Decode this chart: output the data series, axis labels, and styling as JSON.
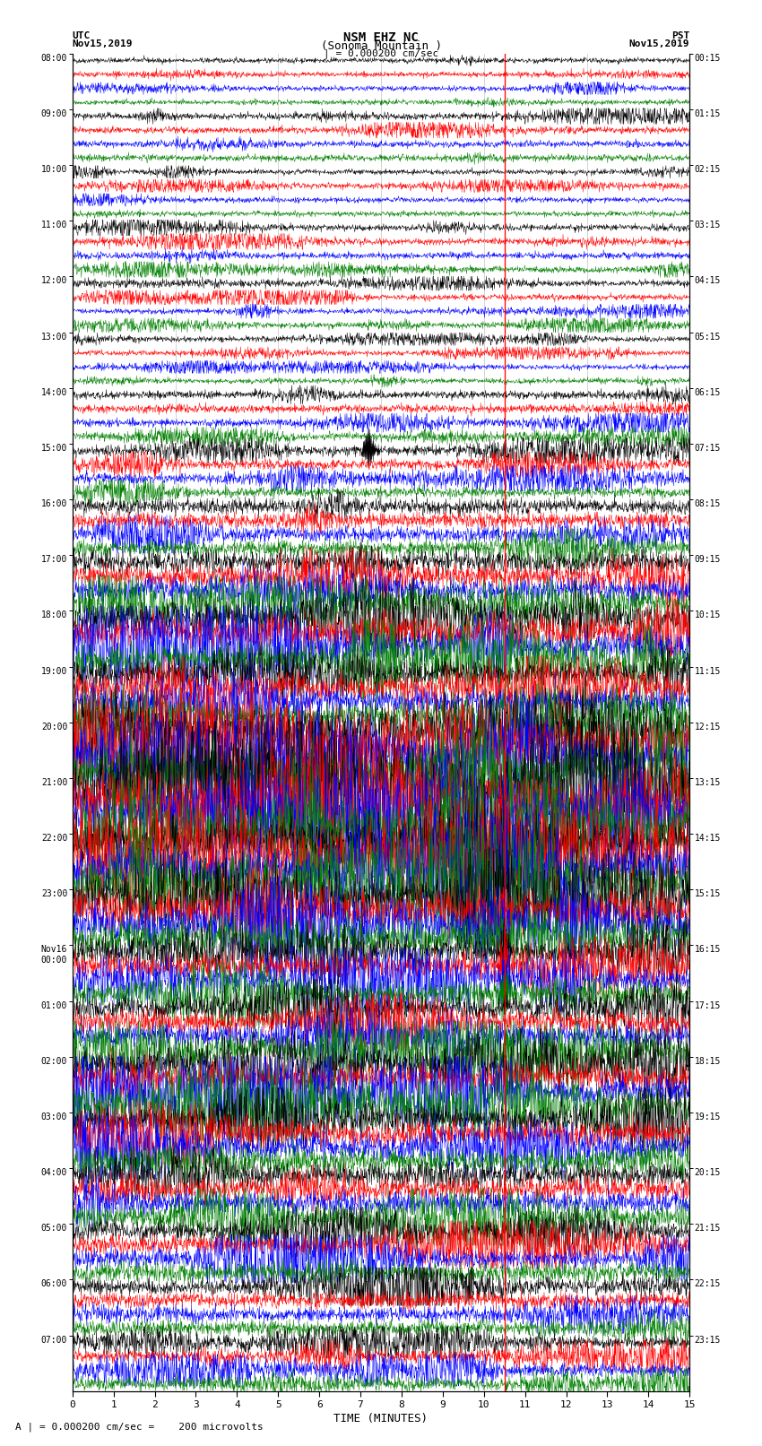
{
  "title_line1": "NSM EHZ NC",
  "title_line2": "(Sonoma Mountain )",
  "scale_text": "| = 0.000200 cm/sec",
  "utc_label": "UTC",
  "utc_date": "Nov15,2019",
  "pst_label": "PST",
  "pst_date": "Nov15,2019",
  "xlabel": "TIME (MINUTES)",
  "footer": "A | = 0.000200 cm/sec =    200 microvolts",
  "fig_width": 8.5,
  "fig_height": 16.13,
  "fig_dpi": 100,
  "left_labels_utc": [
    "08:00",
    "09:00",
    "10:00",
    "11:00",
    "12:00",
    "13:00",
    "14:00",
    "15:00",
    "16:00",
    "17:00",
    "18:00",
    "19:00",
    "20:00",
    "21:00",
    "22:00",
    "23:00",
    "Nov16\n00:00",
    "01:00",
    "02:00",
    "03:00",
    "04:00",
    "05:00",
    "06:00",
    "07:00"
  ],
  "right_labels_pst": [
    "00:15",
    "01:15",
    "02:15",
    "03:15",
    "04:15",
    "05:15",
    "06:15",
    "07:15",
    "08:15",
    "09:15",
    "10:15",
    "11:15",
    "12:15",
    "13:15",
    "14:15",
    "15:15",
    "16:15",
    "17:15",
    "18:15",
    "19:15",
    "20:15",
    "21:15",
    "22:15",
    "23:15"
  ],
  "trace_colors": [
    "black",
    "red",
    "blue",
    "green"
  ],
  "num_groups": 24,
  "traces_per_group": 4,
  "minutes": 15,
  "bg_color": "white",
  "earthquake_time": 10.5,
  "vert_line_times": [
    2.5,
    5.0,
    7.5,
    10.0,
    12.5
  ],
  "activity_profile": [
    0.4,
    0.5,
    0.4,
    0.5,
    0.45,
    0.4,
    0.6,
    0.8,
    1.2,
    1.8,
    2.5,
    2.0,
    3.5,
    4.0,
    3.5,
    3.0,
    2.0,
    1.8,
    2.2,
    2.0,
    1.8,
    1.5,
    1.2,
    1.0
  ],
  "spike_group_black": 7,
  "spike_group_eq": 14,
  "spike_eq_time": 10.5,
  "spike_black_time": 7.2
}
